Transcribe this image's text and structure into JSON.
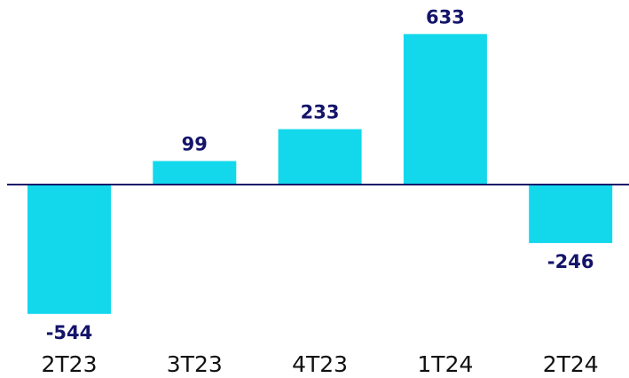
{
  "chart_data": {
    "type": "bar",
    "categories": [
      "2T23",
      "3T23",
      "4T23",
      "1T24",
      "2T24"
    ],
    "values": [
      -544,
      99,
      233,
      633,
      -246
    ],
    "color": "#13d8ec",
    "ylim": [
      -600,
      700
    ]
  }
}
